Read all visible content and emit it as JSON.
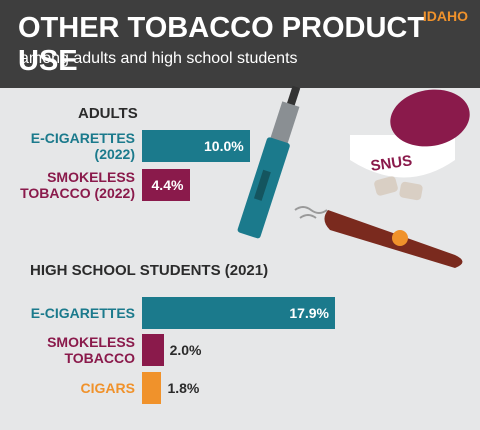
{
  "header": {
    "title": "OTHER TOBACCO PRODUCT USE",
    "subtitle": "among adults and high school students",
    "state": "IDAHO"
  },
  "chart_data": [
    {
      "type": "bar",
      "title": "ADULTS",
      "categories": [
        "E-CIGARETTES\n(2022)",
        "SMOKELESS\nTOBACCO (2022)"
      ],
      "values": [
        10.0,
        4.4
      ],
      "value_labels": [
        "10.0%",
        "4.4%"
      ],
      "colors": [
        "#1b7a8c",
        "#8a1a4b"
      ]
    },
    {
      "type": "bar",
      "title": "HIGH SCHOOL STUDENTS (2021)",
      "categories": [
        "E-CIGARETTES",
        "SMOKELESS\nTOBACCO",
        "CIGARS"
      ],
      "values": [
        17.9,
        2.0,
        1.8
      ],
      "value_labels": [
        "17.9%",
        "2.0%",
        "1.8%"
      ],
      "colors": [
        "#1b7a8c",
        "#8a1a4b",
        "#f0922b"
      ]
    }
  ]
}
